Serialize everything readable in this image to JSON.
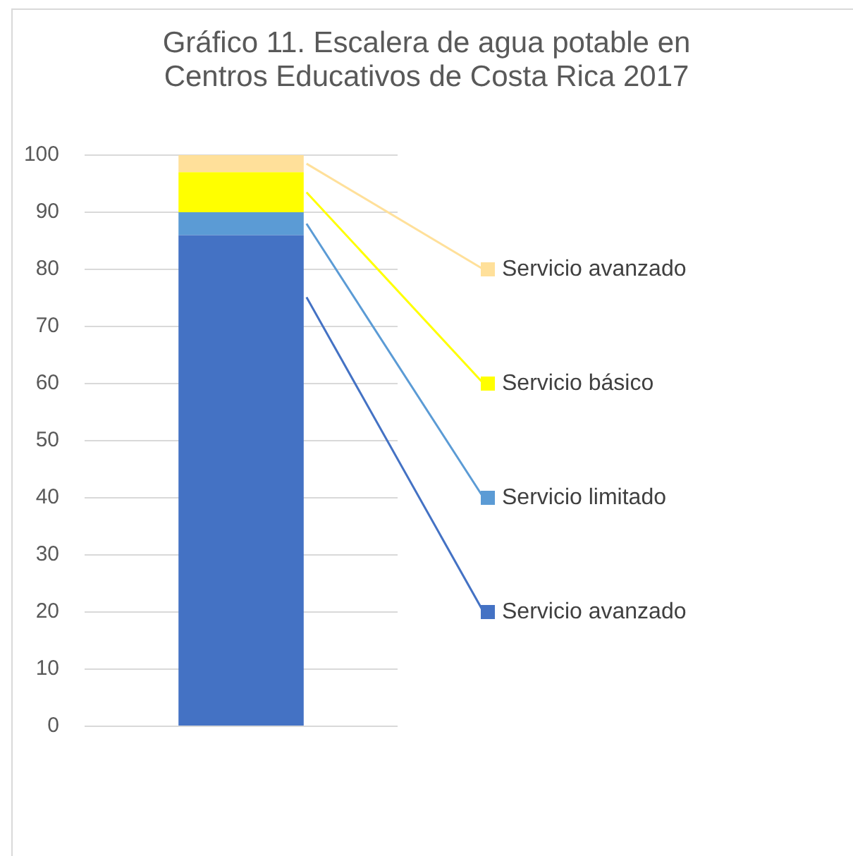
{
  "chart_data": {
    "type": "bar",
    "title": "Gráfico 11. Escalera de agua potable en Centros Educativos de Costa Rica 2017",
    "categories": [
      null
    ],
    "stacked": true,
    "series": [
      {
        "name": "Servicio avanzado",
        "color": "#4472c4",
        "values": [
          86
        ]
      },
      {
        "name": "Servicio limitado",
        "color": "#5b9bd5",
        "values": [
          4
        ]
      },
      {
        "name": "Servicio básico",
        "color": "#ffff00",
        "values": [
          7
        ]
      },
      {
        "name": "Servicio avanzado",
        "color": "#ffe09a",
        "values": [
          3
        ]
      }
    ],
    "ylim": [
      0,
      100
    ],
    "yticks": [
      0,
      10,
      20,
      30,
      40,
      50,
      60,
      70,
      80,
      90,
      100
    ],
    "grid": "y",
    "legend": "right"
  }
}
